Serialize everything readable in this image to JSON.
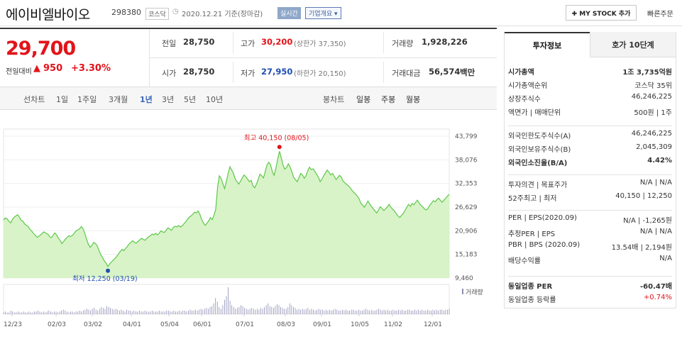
{
  "header": {
    "name": "에이비엘바이오",
    "code": "298380",
    "market": "코스닥",
    "date": "2020.12.21 기준(장마감)",
    "realtime": "실시간",
    "company_info": "기업개요 ▾",
    "my_stock": "✚ MY STOCK 추가",
    "quick_order": "빠른주문"
  },
  "quote": {
    "price": "29,700",
    "change_label": "전일대비",
    "change_arrow": "▲",
    "change": "950",
    "change_pct": "+3.30%",
    "prev_label": "전일",
    "prev": "28,750",
    "open_label": "시가",
    "open": "28,750",
    "high_label": "고가",
    "high": "30,200",
    "upper_limit": "(상한가 37,350)",
    "low_label": "저가",
    "low": "27,950",
    "lower_limit": "(하한가 20,150)",
    "volume_label": "거래량",
    "volume": "1,928,226",
    "amount_label": "거래대금",
    "amount": "56,574",
    "amount_unit": "백만"
  },
  "chart_tabs": {
    "line_label": "선차트",
    "line_items": [
      "1일",
      "1주일",
      "3개월",
      "1년",
      "3년",
      "5년",
      "10년"
    ],
    "selected": "1년",
    "candle_label": "봉차트",
    "candle_items": [
      "일봉",
      "주봉",
      "월봉"
    ]
  },
  "chart_data": {
    "type": "area",
    "title": "",
    "ylim": [
      9460,
      43799
    ],
    "yticks": [
      "43,799",
      "38,076",
      "32,353",
      "26,629",
      "20,906",
      "15,183",
      "9,460"
    ],
    "xticks": [
      "12/23",
      "02/03",
      "03/02",
      "04/01",
      "05/04",
      "06/01",
      "07/01",
      "08/03",
      "09/01",
      "10/05",
      "11/02",
      "12/01"
    ],
    "max_label": "최고 40,150 (08/05)",
    "min_label": "최저 12,250 (03/19)",
    "volume_label": "거래량",
    "series": [
      {
        "values": [
          23500,
          24000,
          23800,
          23200,
          22800,
          23600,
          24200,
          24500,
          24800,
          24200,
          23400,
          23200,
          22500,
          22200,
          21900,
          21200,
          20800,
          20200,
          19800,
          19300,
          19600,
          19900,
          20400,
          20600,
          20300,
          20100,
          19500,
          19200,
          19800,
          20400,
          19900,
          19100,
          18600,
          17800,
          18300,
          18900,
          19300,
          19700,
          19500,
          19800,
          20300,
          20900,
          21100,
          21400,
          21900,
          21400,
          20200,
          18800,
          17600,
          16900,
          17400,
          18100,
          17800,
          17200,
          16100,
          15100,
          14400,
          13600,
          13100,
          12250,
          12900,
          13300,
          13800,
          14200,
          14700,
          15300,
          15900,
          16400,
          16100,
          16600,
          17100,
          17700,
          18100,
          18500,
          18100,
          17900,
          18300,
          18700,
          19100,
          18800,
          18600,
          19100,
          19400,
          19700,
          20100,
          19900,
          20300,
          19900,
          20300,
          20900,
          20600,
          20500,
          21100,
          21600,
          21300,
          21000,
          21700,
          22000,
          21800,
          22200,
          21800,
          22100,
          22600,
          23100,
          23700,
          24200,
          24500,
          24900,
          25400,
          25200,
          25700,
          24900,
          23700,
          22800,
          22200,
          22700,
          23300,
          24100,
          23600,
          24700,
          26100,
          31300,
          34200,
          33600,
          32300,
          31100,
          32900,
          34800,
          36400,
          35600,
          34800,
          33400,
          32800,
          32200,
          32900,
          33700,
          34400,
          34000,
          33400,
          32800,
          33100,
          31800,
          31300,
          32200,
          33400,
          34600,
          34200,
          33700,
          35300,
          36900,
          37500,
          36800,
          35200,
          34300,
          36100,
          38200,
          40150,
          38600,
          36900,
          35800,
          36200,
          37100,
          36400,
          35200,
          33900,
          33300,
          32800,
          33700,
          34800,
          34400,
          33600,
          34200,
          35400,
          36300,
          35700,
          35900,
          35300,
          34600,
          33900,
          32800,
          33400,
          34200,
          34900,
          35600,
          35100,
          34400,
          34800,
          34100,
          33300,
          33800,
          34300,
          33900,
          32900,
          32500,
          32100,
          31800,
          31300,
          30700,
          30200,
          29800,
          29300,
          28700,
          27600,
          27100,
          26600,
          27300,
          28100,
          27400,
          26800,
          26300,
          25700,
          25200,
          25900,
          26700,
          26300,
          25800,
          26200,
          26700,
          27300,
          26600,
          26100,
          25700,
          25100,
          24500,
          24100,
          24600,
          25100,
          25800,
          26600,
          27300,
          26800,
          27500,
          27200,
          27800,
          28300,
          27600,
          27100,
          26700,
          26200,
          25900,
          26300,
          27100,
          27600,
          28200,
          27900,
          28400,
          28800,
          28300,
          27800,
          28300,
          28800,
          29300,
          29700
        ]
      }
    ],
    "volume": [
      2,
      3,
      2,
      2,
      4,
      3,
      2,
      2,
      3,
      2,
      2,
      3,
      2,
      2,
      3,
      2,
      2,
      3,
      3,
      4,
      3,
      2,
      3,
      2,
      3,
      4,
      3,
      2,
      3,
      3,
      2,
      3,
      4,
      5,
      4,
      3,
      2,
      3,
      3,
      2,
      3,
      3,
      4,
      3,
      4,
      5,
      6,
      5,
      4,
      6,
      7,
      5,
      4,
      6,
      8,
      7,
      6,
      9,
      8,
      7,
      6,
      5,
      6,
      5,
      4,
      5,
      4,
      3,
      5,
      4,
      4,
      3,
      4,
      3,
      3,
      4,
      3,
      3,
      4,
      3,
      3,
      3,
      4,
      3,
      3,
      3,
      4,
      3,
      3,
      3,
      4,
      4,
      3,
      3,
      4,
      3,
      3,
      4,
      3,
      4,
      4,
      3,
      4,
      5,
      4,
      4,
      5,
      4,
      5,
      6,
      5,
      6,
      7,
      6,
      8,
      9,
      12,
      18,
      14,
      8,
      6,
      10,
      16,
      20,
      30,
      15,
      10,
      8,
      6,
      7,
      8,
      10,
      9,
      7,
      6,
      5,
      6,
      7,
      6,
      5,
      6,
      5,
      7,
      6,
      8,
      10,
      12,
      9,
      8,
      7,
      9,
      11,
      10,
      8,
      7,
      6,
      6,
      8,
      12,
      10,
      8,
      7,
      5,
      6,
      5,
      6,
      5,
      6,
      7,
      5,
      6,
      5,
      4,
      5,
      6,
      5,
      5,
      4,
      5,
      4,
      5,
      4,
      5,
      6,
      5,
      4,
      4,
      5,
      4,
      5,
      4,
      4,
      5,
      5,
      4,
      4,
      5,
      4,
      4,
      5,
      6,
      5,
      4,
      5,
      4,
      4,
      5,
      6,
      5,
      4,
      5,
      4,
      5,
      4,
      4,
      5,
      4,
      4,
      5,
      4,
      5,
      4,
      4,
      5,
      5,
      4,
      4,
      5,
      4,
      5,
      4,
      5,
      4,
      4,
      5,
      4,
      4,
      5,
      4,
      5,
      4,
      5,
      5,
      4,
      5,
      5,
      6
    ]
  },
  "side": {
    "tab_active": "투자정보",
    "tab_other": "호가 10단계",
    "sections": [
      [
        [
          "시가총액",
          "1조 3,735억원",
          true
        ],
        [
          "시가총액순위",
          "코스닥 35위",
          false
        ],
        [
          "상장주식수",
          "46,246,225",
          false
        ],
        [
          "액면가 | 매매단위",
          "500원 | 1주",
          false
        ]
      ],
      [
        [
          "외국인한도주식수(A)",
          "46,246,225",
          false
        ],
        [
          "외국인보유주식수(B)",
          "2,045,309",
          false
        ],
        [
          "외국인소진율(B/A)",
          "4.42%",
          true
        ]
      ],
      [
        [
          "투자의견 | 목표주가",
          "N/A | N/A",
          false
        ],
        [
          "52주최고 | 최저",
          "40,150 | 12,250",
          false
        ]
      ],
      [
        [
          "PER | EPS(2020.09)",
          "N/A | -1,265원",
          false
        ],
        [
          "추정PER | EPS",
          "N/A | N/A",
          false
        ],
        [
          "PBR | BPS (2020.09)",
          "13.54배 | 2,194원",
          false
        ],
        [
          "배당수익률",
          "N/A",
          false
        ]
      ],
      [
        [
          "동일업종 PER",
          "-60.47배",
          true
        ],
        [
          "동일업종 등락률",
          "+0.74%",
          false
        ]
      ]
    ]
  },
  "colors": {
    "up": "#e2141b",
    "down": "#1f4fb0",
    "area": "#d8f3c8",
    "line": "#5ec84a"
  }
}
